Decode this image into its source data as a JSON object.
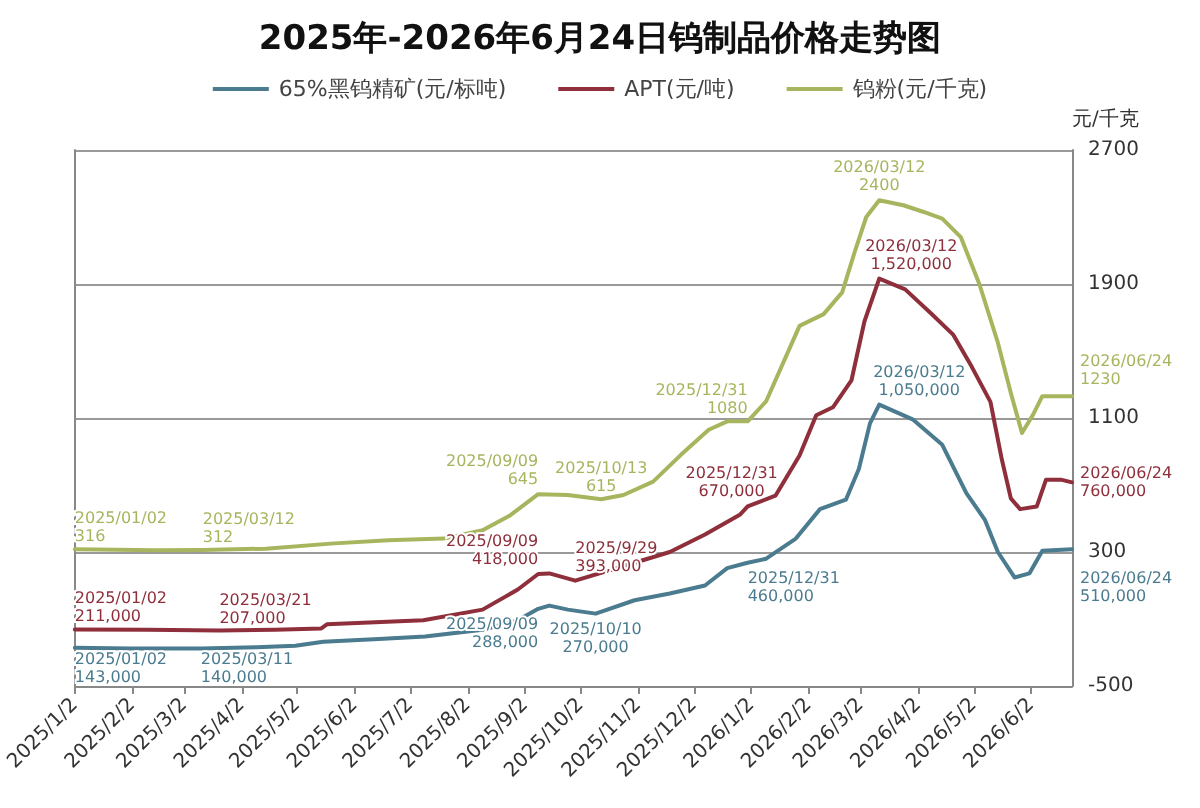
{
  "chart_data": {
    "type": "line",
    "title": "2025年-2026年6月24日钨制品价格走势图",
    "ylabel": "元/千克",
    "xlim": [
      "2025-01-02",
      "2026-06-24"
    ],
    "xticks": [
      {
        "value": "2025-01-02",
        "label": "2025/1/2"
      },
      {
        "value": "2025-02-02",
        "label": "2025/2/2"
      },
      {
        "value": "2025-03-02",
        "label": "2025/3/2"
      },
      {
        "value": "2025-04-02",
        "label": "2025/4/2"
      },
      {
        "value": "2025-05-02",
        "label": "2025/5/2"
      },
      {
        "value": "2025-06-02",
        "label": "2025/6/2"
      },
      {
        "value": "2025-07-02",
        "label": "2025/7/2"
      },
      {
        "value": "2025-08-02",
        "label": "2025/8/2"
      },
      {
        "value": "2025-09-02",
        "label": "2025/9/2"
      },
      {
        "value": "2025-10-02",
        "label": "2025/10/2"
      },
      {
        "value": "2025-11-02",
        "label": "2025/11/2"
      },
      {
        "value": "2025-12-02",
        "label": "2025/12/2"
      },
      {
        "value": "2026-01-02",
        "label": "2026/1/2"
      },
      {
        "value": "2026-02-02",
        "label": "2026/2/2"
      },
      {
        "value": "2026-03-02",
        "label": "2026/3/2"
      },
      {
        "value": "2026-04-02",
        "label": "2026/4/2"
      },
      {
        "value": "2026-05-02",
        "label": "2026/5/2"
      },
      {
        "value": "2026-06-02",
        "label": "2026/6/2"
      }
    ],
    "ylim": [
      -500,
      2700
    ],
    "yticks": [
      -500,
      300,
      1100,
      1900,
      2700
    ],
    "y2lim": [
      0,
      2000000
    ],
    "grid": "y",
    "legend": "top",
    "marker": "none",
    "series": [
      {
        "name": "65%黑钨精矿(元/标吨)",
        "color": "#4a7b8f",
        "axis": "y2",
        "x": [
          "2025-01-02",
          "2025-02-01",
          "2025-03-11",
          "2025-04-10",
          "2025-05-01",
          "2025-05-16",
          "2025-06-15",
          "2025-07-10",
          "2025-08-10",
          "2025-08-29",
          "2025-09-09",
          "2025-09-15",
          "2025-09-25",
          "2025-10-10",
          "2025-10-31",
          "2025-11-19",
          "2025-12-08",
          "2025-12-20",
          "2025-12-31",
          "2026-01-10",
          "2026-01-26",
          "2026-02-08",
          "2026-02-22",
          "2026-03-01",
          "2026-03-07",
          "2026-03-12",
          "2026-03-30",
          "2026-04-15",
          "2026-04-28",
          "2026-05-08",
          "2026-05-15",
          "2026-05-24",
          "2026-06-01",
          "2026-06-08",
          "2026-06-24"
        ],
        "values": [
          143000,
          140000,
          140000,
          145000,
          150000,
          165000,
          175000,
          185000,
          210000,
          245000,
          288000,
          300000,
          285000,
          270000,
          320000,
          345000,
          375000,
          440000,
          460000,
          475000,
          550000,
          660000,
          695000,
          810000,
          980000,
          1050000,
          995000,
          900000,
          720000,
          620000,
          500000,
          405000,
          420000,
          505000,
          510000
        ],
        "value_labels": [
          "2025/01/02\n143,000",
          null,
          "2025/03/11\n140,000",
          null,
          null,
          null,
          null,
          null,
          null,
          null,
          "2025/09/09\n288,000",
          null,
          null,
          "2025/10/10\n270,000",
          null,
          null,
          null,
          null,
          "2025/12/31\n460,000",
          null,
          null,
          null,
          null,
          null,
          null,
          "2026/03/12\n1,050,000",
          null,
          null,
          null,
          null,
          null,
          null,
          null,
          null,
          "2026/06/24\n510,000"
        ]
      },
      {
        "name": "APT(元/吨)",
        "color": "#8e2f3b",
        "axis": "y2",
        "x": [
          "2025-01-02",
          "2025-02-10",
          "2025-03-21",
          "2025-04-20",
          "2025-05-15",
          "2025-05-18",
          "2025-07-09",
          "2025-08-10",
          "2025-08-29",
          "2025-09-09",
          "2025-09-15",
          "2025-09-29",
          "2025-10-31",
          "2025-11-19",
          "2025-12-08",
          "2025-12-27",
          "2025-12-31",
          "2026-01-15",
          "2026-01-28",
          "2026-02-06",
          "2026-02-15",
          "2026-02-25",
          "2026-03-04",
          "2026-03-12",
          "2026-03-26",
          "2026-04-09",
          "2026-04-21",
          "2026-05-01",
          "2026-05-11",
          "2026-05-17",
          "2026-05-22",
          "2026-05-27",
          "2026-06-05",
          "2026-06-10",
          "2026-06-18",
          "2026-06-24"
        ],
        "values": [
          211000,
          210000,
          207000,
          210000,
          215000,
          230000,
          245000,
          285000,
          360000,
          418000,
          420000,
          393000,
          460000,
          500000,
          565000,
          640000,
          670000,
          710000,
          860000,
          1010000,
          1040000,
          1140000,
          1360000,
          1520000,
          1480000,
          1390000,
          1310000,
          1190000,
          1060000,
          850000,
          700000,
          660000,
          670000,
          770000,
          770000,
          760000
        ],
        "value_labels": [
          "2025/01/02\n211,000",
          null,
          "2025/03/21\n207,000",
          null,
          null,
          null,
          null,
          null,
          null,
          "2025/09/09\n418,000",
          null,
          "2025/9/29\n393,000",
          null,
          null,
          null,
          null,
          "2025/12/31\n670,000",
          null,
          null,
          null,
          null,
          null,
          null,
          "2026/03/12\n1,520,000",
          null,
          null,
          null,
          null,
          null,
          null,
          null,
          null,
          null,
          null,
          null,
          "2026/06/24\n760,000"
        ]
      },
      {
        "name": "钨粉(元/千克)",
        "color": "#a8b55e",
        "x": [
          "2025-01-02",
          "2025-02-15",
          "2025-03-12",
          "2025-04-15",
          "2025-05-20",
          "2025-06-20",
          "2025-07-20",
          "2025-08-10",
          "2025-08-25",
          "2025-09-09",
          "2025-09-25",
          "2025-10-13",
          "2025-10-25",
          "2025-11-10",
          "2025-11-25",
          "2025-12-10",
          "2025-12-20",
          "2025-12-31",
          "2026-01-10",
          "2026-01-20",
          "2026-01-28",
          "2026-02-10",
          "2026-02-20",
          "2026-02-27",
          "2026-03-05",
          "2026-03-12",
          "2026-03-25",
          "2026-04-05",
          "2026-04-15",
          "2026-04-25",
          "2026-05-05",
          "2026-05-15",
          "2026-05-22",
          "2026-05-28",
          "2026-06-03",
          "2026-06-08",
          "2026-06-24"
        ],
        "values": [
          316,
          310,
          312,
          320,
          350,
          370,
          380,
          430,
          520,
          645,
          640,
          615,
          640,
          720,
          880,
          1030,
          1080,
          1080,
          1200,
          1450,
          1650,
          1720,
          1850,
          2100,
          2300,
          2400,
          2370,
          2330,
          2290,
          2180,
          1900,
          1550,
          1250,
          1010,
          1120,
          1230,
          1230
        ],
        "value_labels": [
          "2025/01/02\n316",
          null,
          "2025/03/12\n312",
          null,
          null,
          null,
          null,
          null,
          null,
          "2025/09/09\n645",
          null,
          "2025/10/13\n615",
          null,
          null,
          null,
          null,
          null,
          "2025/12/31\n1080",
          null,
          null,
          null,
          null,
          null,
          null,
          null,
          "2026/03/12\n2400",
          null,
          null,
          null,
          null,
          null,
          null,
          null,
          null,
          null,
          null,
          "2026/06/24\n1230"
        ]
      }
    ]
  }
}
